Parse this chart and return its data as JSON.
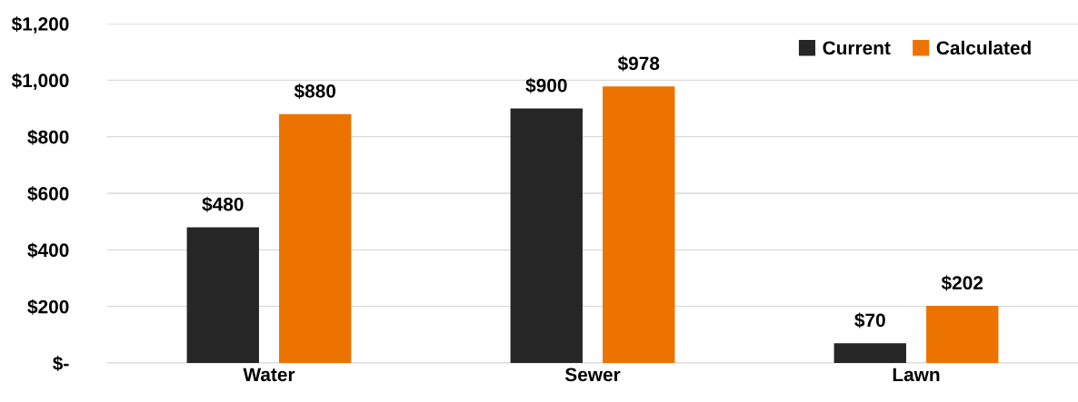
{
  "chart_data": {
    "type": "bar",
    "categories": [
      "Water",
      "Sewer",
      "Lawn"
    ],
    "series": [
      {
        "name": "Current",
        "color": "#262626",
        "values": [
          480,
          900,
          70
        ],
        "value_labels": [
          "$480",
          "$900",
          "$70"
        ]
      },
      {
        "name": "Calculated",
        "color": "#ed7300",
        "values": [
          880,
          978,
          202
        ],
        "value_labels": [
          "$880",
          "$978",
          "$202"
        ]
      }
    ],
    "ylim": [
      0,
      1200
    ],
    "yticks": [
      {
        "value": 0,
        "label": "$-"
      },
      {
        "value": 200,
        "label": "$200"
      },
      {
        "value": 400,
        "label": "$400"
      },
      {
        "value": 600,
        "label": "$600"
      },
      {
        "value": 800,
        "label": "$800"
      },
      {
        "value": 1000,
        "label": "$1,000"
      },
      {
        "value": 1200,
        "label": "$1,200"
      }
    ],
    "grid": "y",
    "legend": "top right"
  }
}
